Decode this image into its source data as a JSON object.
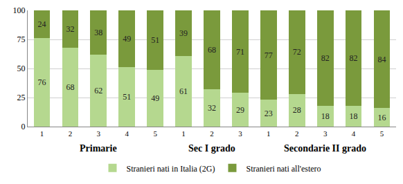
{
  "chart_data": {
    "type": "bar",
    "stacked": true,
    "categories": [
      "1",
      "2",
      "3",
      "4",
      "5",
      "1",
      "2",
      "3",
      "1",
      "2",
      "3",
      "4",
      "5"
    ],
    "series": [
      {
        "name": "Stranieri nati in Italia (2G)",
        "color": "#b5d88f",
        "values": [
          76,
          68,
          62,
          51,
          49,
          61,
          32,
          29,
          23,
          28,
          18,
          18,
          16
        ]
      },
      {
        "name": "Stranieri nati all'estero",
        "color": "#7a9a3c",
        "values": [
          24,
          32,
          38,
          49,
          51,
          39,
          68,
          71,
          77,
          72,
          82,
          82,
          84
        ]
      }
    ],
    "annotations": [
      {
        "text": "Primarie",
        "x": 2
      },
      {
        "text": "Sec I grado",
        "x": 6
      },
      {
        "text": "Secondarie II grado",
        "x": 10
      }
    ],
    "ylim": [
      0,
      100
    ],
    "yticks": [
      0,
      25,
      50,
      75,
      100
    ],
    "grid": true,
    "data_labels": true,
    "legend": "bottom"
  }
}
